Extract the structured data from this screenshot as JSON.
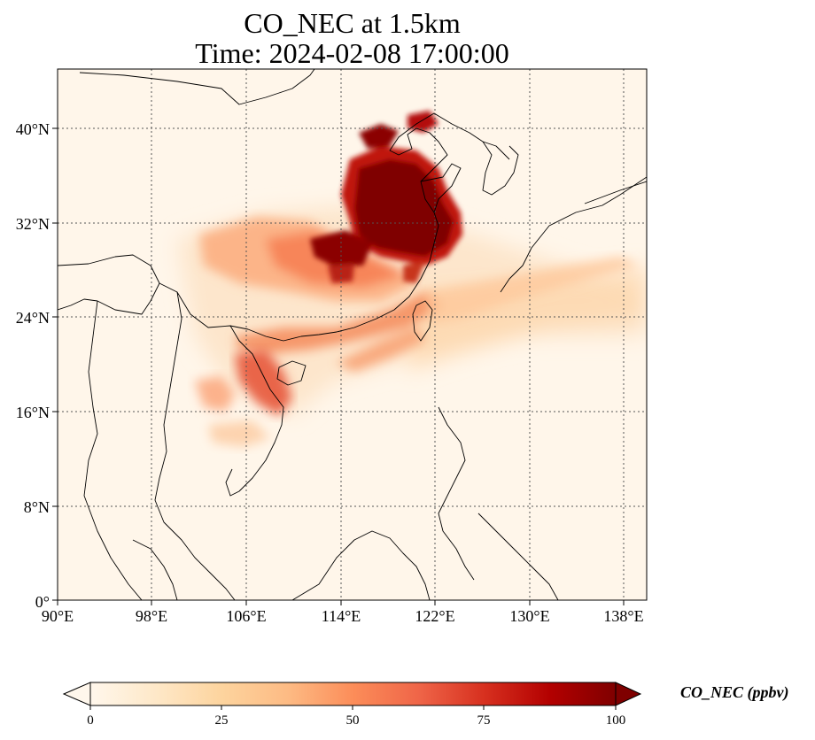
{
  "title": {
    "line1": "CO_NEC at 1.5km",
    "line2": "Time: 2024-02-08 17:00:00"
  },
  "map": {
    "projection": "plate-carree",
    "lon_range": [
      90,
      140
    ],
    "lat_range": [
      0,
      45
    ],
    "gridlines": "dotted",
    "lat_ticks": [
      "0°",
      "8°N",
      "16°N",
      "24°N",
      "32°N",
      "40°N"
    ],
    "lon_ticks": [
      "90°E",
      "98°E",
      "106°E",
      "114°E",
      "122°E",
      "130°E",
      "138°E"
    ],
    "variable": "CO_NEC",
    "level": "1.5km",
    "plumes": [
      {
        "name": "north-china-plain-core",
        "level": "100+"
      },
      {
        "name": "yangtze-river-delta-core",
        "level": "100+"
      },
      {
        "name": "central-china-belt",
        "level": "40-70"
      },
      {
        "name": "south-china-coast",
        "level": "50-80"
      },
      {
        "name": "gulf-of-tonkin",
        "level": "50-75"
      },
      {
        "name": "laos-patch",
        "level": "30-40"
      },
      {
        "name": "east-china-sea-outflow",
        "level": "15-30"
      }
    ]
  },
  "colorbar": {
    "label": "CO_NEC (ppbv)",
    "ticks": [
      "0",
      "25",
      "50",
      "75",
      "100"
    ],
    "min": 0,
    "max": 100,
    "extend": "both",
    "colormap": "OrRd",
    "colors": [
      "#fff7ec",
      "#fee8c8",
      "#fdd49e",
      "#fdbb84",
      "#fc8d59",
      "#ef6548",
      "#d7301f",
      "#b30000",
      "#7f0000"
    ]
  }
}
